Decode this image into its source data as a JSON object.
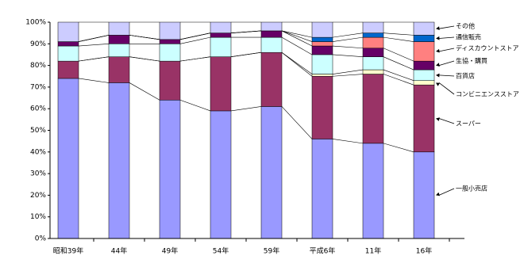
{
  "chart_data": {
    "type": "stacked_bar_100",
    "categories": [
      "昭和39年",
      "44年",
      "49年",
      "54年",
      "59年",
      "平成6年",
      "11年",
      "16年"
    ],
    "series": [
      {
        "name": "一般小売店",
        "color": "#9999ff",
        "values": [
          74,
          72,
          64,
          59,
          61,
          46,
          44,
          40
        ]
      },
      {
        "name": "スーパー",
        "color": "#993366",
        "values": [
          8,
          12,
          18,
          25,
          25,
          29,
          32,
          31
        ]
      },
      {
        "name": "コンビニエンスストア",
        "color": "#ffffcc",
        "values": [
          0,
          0,
          0,
          0,
          0,
          1,
          2,
          2
        ]
      },
      {
        "name": "百貨店",
        "color": "#ccffff",
        "values": [
          7,
          6,
          8,
          9,
          7,
          9,
          6,
          5
        ]
      },
      {
        "name": "生協・購買",
        "color": "#660066",
        "values": [
          2,
          4,
          2,
          2,
          3,
          4,
          4,
          4
        ]
      },
      {
        "name": "ディスカウントストア",
        "color": "#ff8080",
        "values": [
          0,
          0,
          0,
          0,
          0,
          2,
          5,
          9
        ]
      },
      {
        "name": "通信販売",
        "color": "#0066cc",
        "values": [
          0,
          0,
          0,
          0,
          0,
          2,
          2,
          3
        ]
      },
      {
        "name": "その他",
        "color": "#ccccff",
        "values": [
          9,
          6,
          8,
          5,
          4,
          7,
          5,
          6
        ]
      }
    ],
    "ylim": [
      0,
      100
    ],
    "yticks": [
      {
        "value": 0,
        "label": "0%"
      },
      {
        "value": 10,
        "label": "10%"
      },
      {
        "value": 20,
        "label": "20%"
      },
      {
        "value": 30,
        "label": "30%"
      },
      {
        "value": 40,
        "label": "40%"
      },
      {
        "value": 50,
        "label": "50%"
      },
      {
        "value": 60,
        "label": "60%"
      },
      {
        "value": 70,
        "label": "70%"
      },
      {
        "value": 80,
        "label": "80%"
      },
      {
        "value": 90,
        "label": "90%"
      },
      {
        "value": 100,
        "label": "100%"
      }
    ],
    "grid": false
  }
}
